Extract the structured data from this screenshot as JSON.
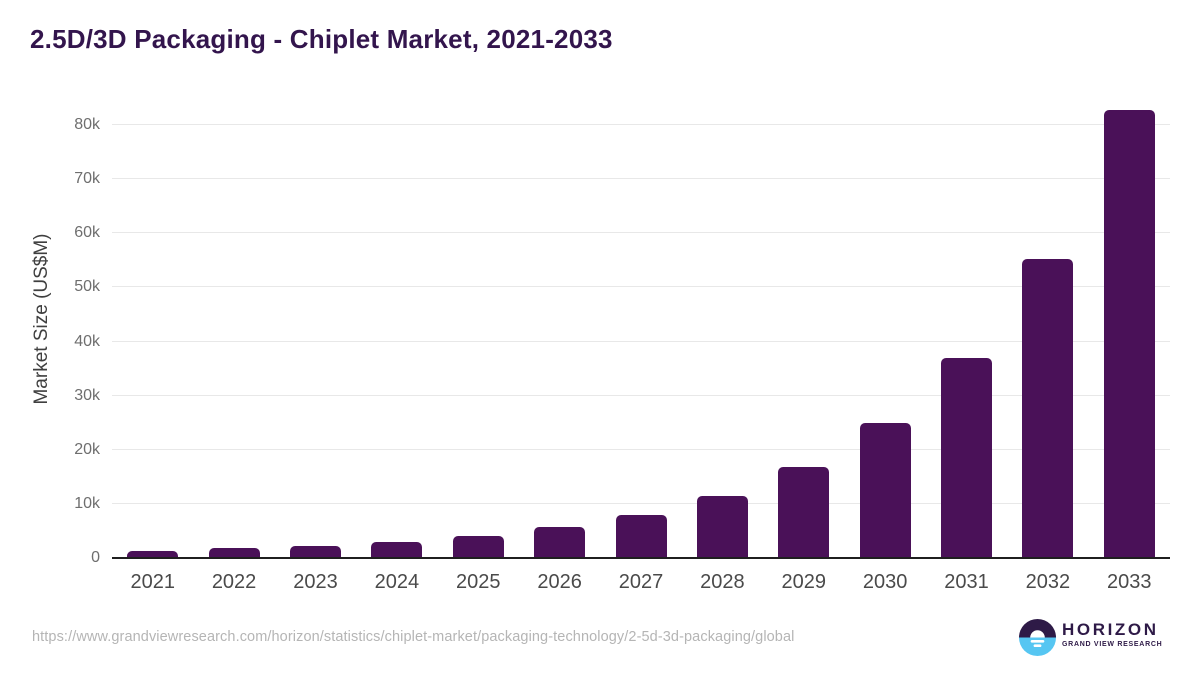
{
  "title": {
    "text": "2.5D/3D Packaging - Chiplet Market, 2021-2033",
    "color": "#33154d"
  },
  "chart_data": {
    "type": "bar",
    "title": "2.5D/3D Packaging - Chiplet Market, 2021-2033",
    "categories": [
      "2021",
      "2022",
      "2023",
      "2024",
      "2025",
      "2026",
      "2027",
      "2028",
      "2029",
      "2030",
      "2031",
      "2032",
      "2033"
    ],
    "values": [
      1200,
      1700,
      2000,
      2700,
      3850,
      5550,
      7700,
      11300,
      16600,
      24700,
      36800,
      55000,
      82500
    ],
    "xlabel": "",
    "ylabel": "Market Size (US$M)",
    "ylim": [
      0,
      80000
    ],
    "yticks": [
      {
        "value": 0,
        "label": "0"
      },
      {
        "value": 10000,
        "label": "10k"
      },
      {
        "value": 20000,
        "label": "20k"
      },
      {
        "value": 30000,
        "label": "30k"
      },
      {
        "value": 40000,
        "label": "40k"
      },
      {
        "value": 50000,
        "label": "50k"
      },
      {
        "value": 60000,
        "label": "60k"
      },
      {
        "value": 70000,
        "label": "70k"
      },
      {
        "value": 80000,
        "label": "80k"
      }
    ],
    "bar_color": "#4a1158",
    "grid": "horizontal",
    "legend": "none",
    "values_unit": "US$M"
  },
  "footer": {
    "source_url": "https://www.grandviewresearch.com/horizon/statistics/chiplet-market/packaging-technology/2-5d-3d-packaging/global",
    "logo": {
      "brand": "HORIZON",
      "sub_brand": "GRAND VIEW RESEARCH",
      "icon": "sun-over-horizon-icon",
      "colors": {
        "dark_purple": "#2e1a47",
        "light_blue": "#56c6f2",
        "white": "#ffffff"
      }
    }
  }
}
